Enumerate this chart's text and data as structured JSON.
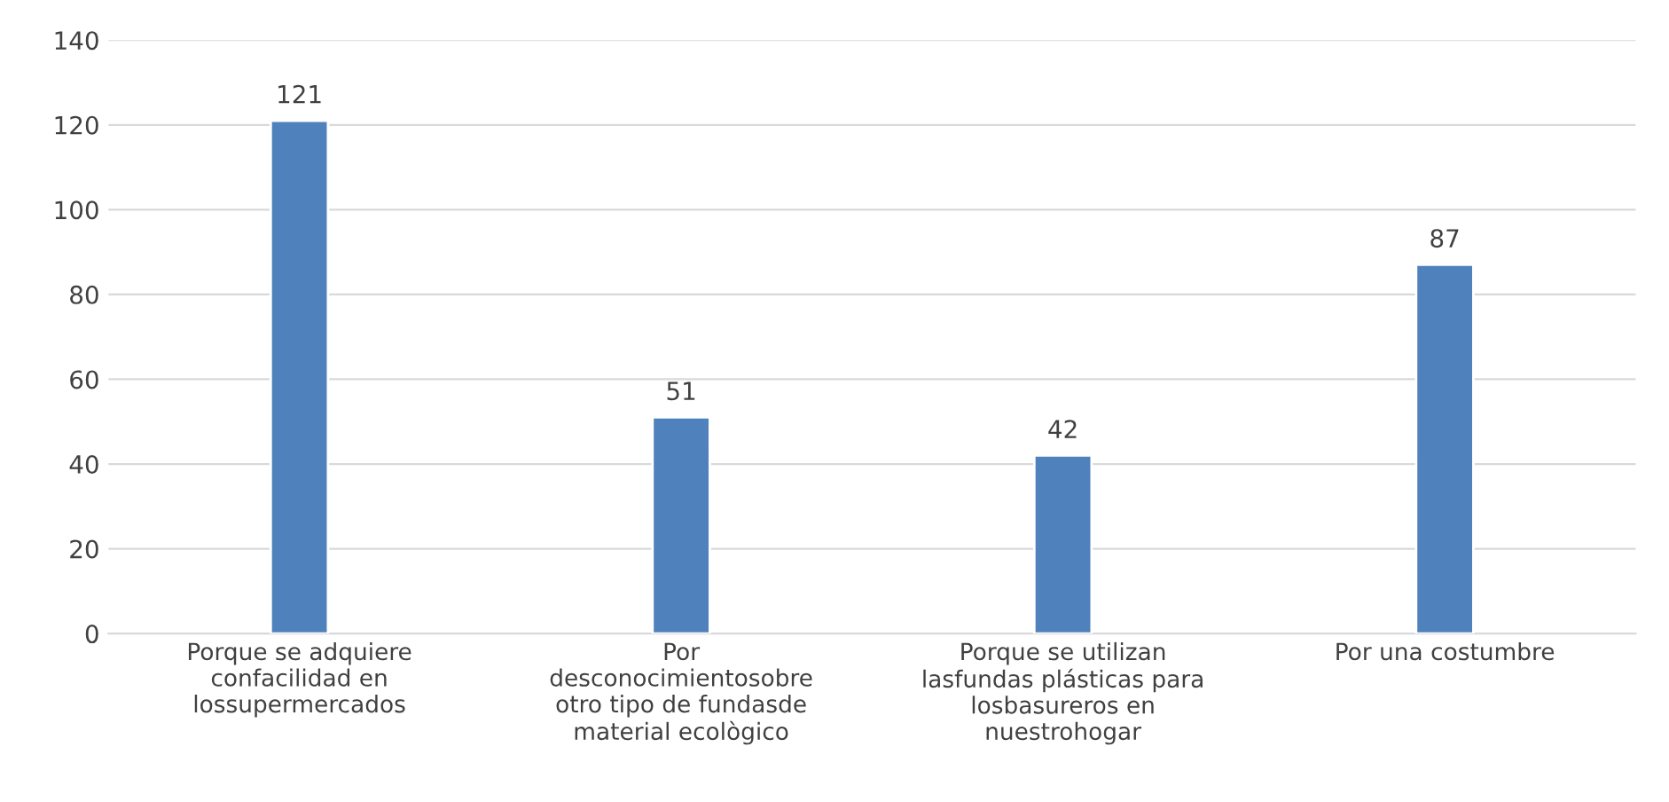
{
  "chart_data": {
    "type": "bar",
    "categories": [
      "Porque se adquiere\nconfacilidad en\nlossupermercados",
      "Por\ndesconocimientosobre\notro tipo de fundasde\nmaterial ecològico",
      "Porque se utilizan\nlasfundas plásticas para\nlosbasureros en\nnuestrohogar",
      "Por una costumbre"
    ],
    "values": [
      121,
      51,
      42,
      87
    ],
    "color": "#4f81bd",
    "ylim": [
      0,
      140
    ],
    "yticks": [
      0,
      20,
      40,
      60,
      80,
      100,
      120,
      140
    ],
    "grid": "y",
    "data_labels": true
  }
}
